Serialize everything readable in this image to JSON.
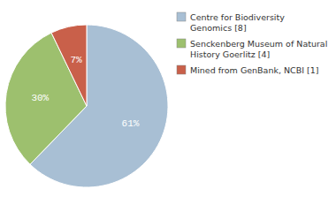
{
  "chart_data": {
    "type": "pie",
    "categories": [
      "Centre for Biodiversity\nGenomics [8]",
      "Senckenberg Museum of Natural\nHistory Goerlitz [4]",
      "Mined from GenBank, NCBI [1]"
    ],
    "values": [
      61,
      30,
      7
    ],
    "value_labels": [
      "61%",
      "30%",
      "7%"
    ],
    "colors": [
      "#a8bfd4",
      "#9dc06e",
      "#c9604a"
    ],
    "data_labels": true,
    "legend": "right"
  }
}
